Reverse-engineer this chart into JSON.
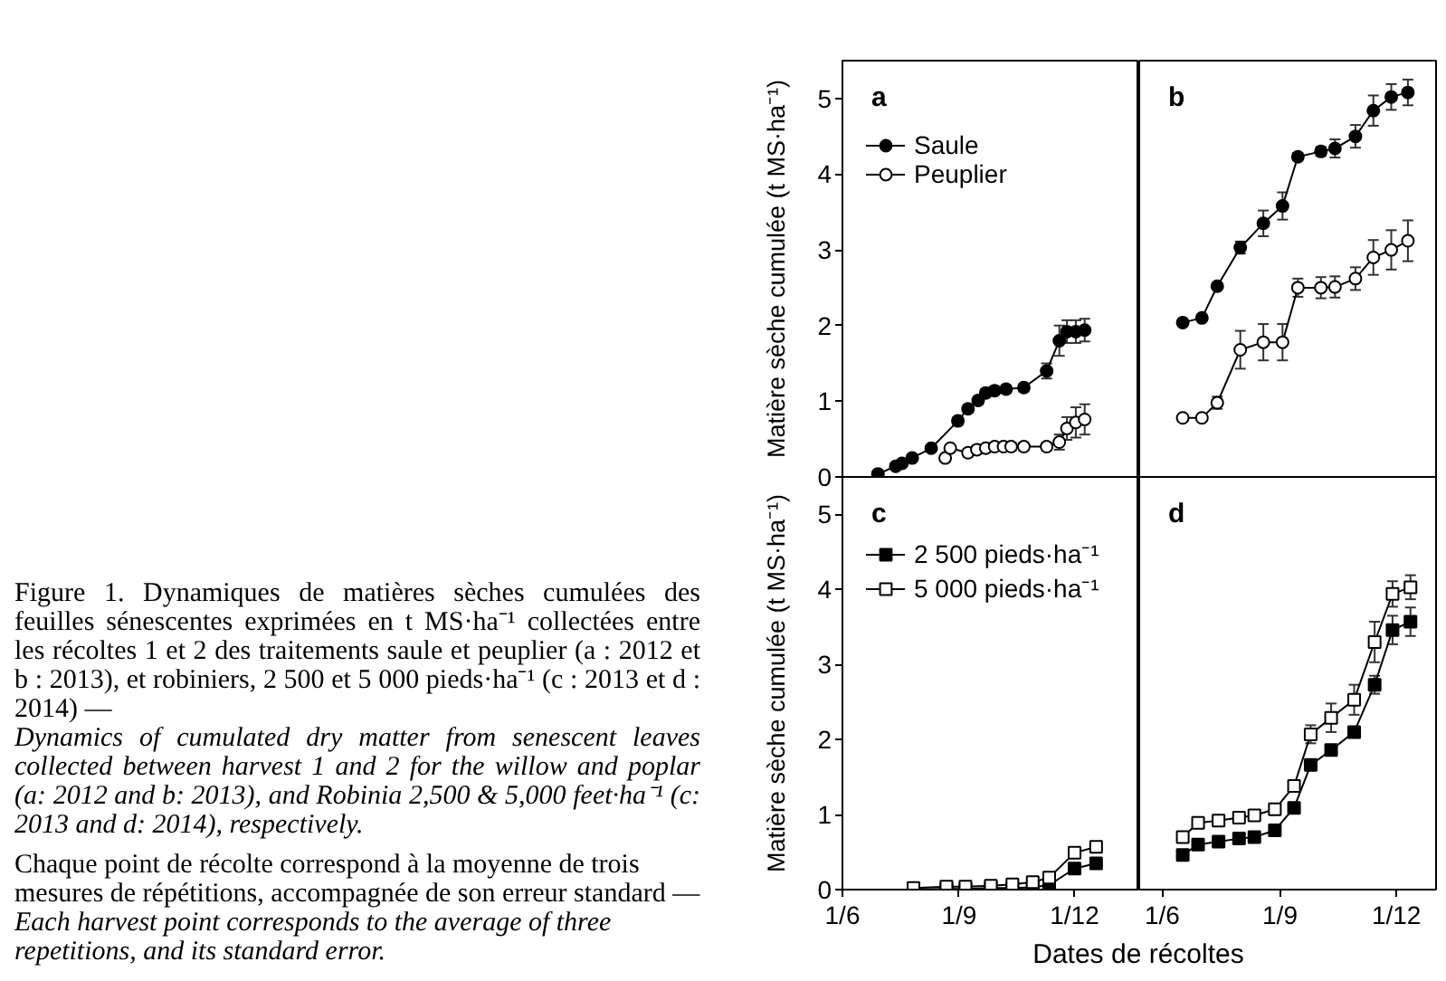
{
  "chart_data": [
    {
      "type": "line",
      "title": "a",
      "ylabel": "Matière sèche cumulée (t MS·ha⁻¹)",
      "marker": "circle",
      "legend": "top left",
      "tick_labels": "y",
      "annotations": [
        "Figure 1. Dynamiques de matières sèches cumulées des feuilles sénescentes exprimées en t MS·ha⁻¹ collectées entre les récoltes 1 et 2 des traitements saule et peuplier (a : 2012 et b : 2013), et robiniers, 2 500 et 5 000 pieds·ha⁻¹ (c : 2013 et d : 2014) —",
        "Dynamics of cumulated dry matter from senescent leaves collected between harvest 1 and 2 for the willow and poplar (a: 2012 and b: 2013), and Robinia 2,500 & 5,000 feet·ha⁻¹ (c: 2013 and d: 2014), respectively.",
        "Chaque point de récolte correspond à la moyenne de trois mesures de répétitions, accompagnée de son erreur standard —",
        "Each harvest point corresponds to the average of three repetitions, and its standard error."
      ],
      "xlim": [
        "2013-06-01",
        "2014-01-21"
      ],
      "ylim": [
        0,
        5.5
      ],
      "yticks": [
        0,
        1,
        2,
        3,
        4,
        5
      ],
      "series": [
        {
          "name": "Saule",
          "color": "#000000",
          "x": [
            "2013-06-29",
            "2013-07-13",
            "2013-07-18",
            "2013-07-26",
            "2013-08-10",
            "2013-08-31",
            "2013-09-08",
            "2013-09-16",
            "2013-09-22",
            "2013-09-29",
            "2013-10-08",
            "2013-10-22",
            "2013-11-09",
            "2013-11-19",
            "2013-11-25",
            "2013-12-02",
            "2013-12-09"
          ],
          "values": [
            0.04,
            0.14,
            0.18,
            0.25,
            0.38,
            0.74,
            0.9,
            1.01,
            1.11,
            1.14,
            1.16,
            1.18,
            1.4,
            1.8,
            1.92,
            1.92,
            1.94
          ],
          "errors": [
            null,
            null,
            null,
            null,
            null,
            0.05,
            0.05,
            0.05,
            0.05,
            0.05,
            0.05,
            0.05,
            0.1,
            0.2,
            0.15,
            0.15,
            0.15
          ]
        },
        {
          "name": "Peuplier",
          "color": "#ffffff",
          "x": [
            "2013-08-21",
            "2013-08-25",
            "2013-09-08",
            "2013-09-15",
            "2013-09-22",
            "2013-09-29",
            "2013-10-06",
            "2013-10-12",
            "2013-10-22",
            "2013-11-09",
            "2013-11-19",
            "2013-11-25",
            "2013-12-02",
            "2013-12-09"
          ],
          "values": [
            0.25,
            0.38,
            0.32,
            0.36,
            0.38,
            0.4,
            0.4,
            0.4,
            0.4,
            0.4,
            0.46,
            0.64,
            0.72,
            0.76
          ],
          "errors": [
            null,
            null,
            0.05,
            0.05,
            0.05,
            0.05,
            0.05,
            0.05,
            0.05,
            0.05,
            0.1,
            0.15,
            0.2,
            0.2
          ]
        }
      ]
    },
    {
      "type": "line",
      "title": "b",
      "marker": "circle",
      "tick_labels": false,
      "xlim": [
        "2014-05-14",
        "2015-01-01"
      ],
      "ylim": [
        0,
        5.5
      ],
      "x": [
        "2014-06-17",
        "2014-07-02",
        "2014-07-14",
        "2014-08-01",
        "2014-08-19",
        "2014-09-03",
        "2014-09-15",
        "2014-10-03",
        "2014-10-14",
        "2014-10-30",
        "2014-11-13",
        "2014-11-27",
        "2014-12-10"
      ],
      "series": [
        {
          "color": "#000000",
          "values": [
            2.04,
            2.1,
            2.52,
            3.03,
            3.35,
            3.58,
            4.23,
            4.3,
            4.34,
            4.5,
            4.84,
            5.02,
            5.08
          ],
          "errors": [
            null,
            null,
            null,
            0.08,
            0.17,
            0.18,
            0.05,
            0.06,
            0.12,
            0.15,
            0.2,
            0.17,
            0.17
          ]
        },
        {
          "color": "#ffffff",
          "values": [
            0.78,
            0.78,
            0.98,
            1.68,
            1.78,
            1.78,
            2.5,
            2.5,
            2.51,
            2.62,
            2.9,
            3.0,
            3.12
          ],
          "errors": [
            null,
            null,
            0.08,
            0.25,
            0.24,
            0.24,
            0.12,
            0.14,
            0.14,
            0.15,
            0.23,
            0.26,
            0.27
          ]
        }
      ]
    },
    {
      "type": "line",
      "title": "c",
      "xlabel": "Dates de récoltes",
      "ylabel": "Matière sèche cumulée (t MS·ha⁻¹)",
      "marker": "square",
      "legend": "top left",
      "xlim": [
        "2013-06-01",
        "2014-01-21"
      ],
      "ylim": [
        0,
        5.5
      ],
      "xticks": [
        {
          "value": "2013-06-01",
          "label": "1/6"
        },
        {
          "value": "2013-09-01",
          "label": "1/9"
        },
        {
          "value": "2013-12-01",
          "label": "1/12"
        }
      ],
      "yticks": [
        0,
        1,
        2,
        3,
        4,
        5
      ],
      "x": [
        "2013-07-27",
        "2013-08-22",
        "2013-09-06",
        "2013-09-26",
        "2013-10-13",
        "2013-10-29",
        "2013-11-11",
        "2013-12-01",
        "2013-12-18"
      ],
      "series": [
        {
          "name": "2 500 pieds·ha⁻¹",
          "color": "#000000",
          "values": [
            0.0,
            0.01,
            0.01,
            0.02,
            0.02,
            0.03,
            0.06,
            0.28,
            0.35
          ]
        },
        {
          "name": "5 000 pieds·ha⁻¹",
          "color": "#ffffff",
          "values": [
            0.02,
            0.04,
            0.04,
            0.05,
            0.07,
            0.1,
            0.16,
            0.49,
            0.57
          ]
        }
      ]
    },
    {
      "type": "line",
      "title": "d",
      "marker": "square",
      "tick_labels": "x",
      "xlim": [
        "2014-05-14",
        "2015-01-01"
      ],
      "ylim": [
        0,
        5.5
      ],
      "xticks": [
        {
          "value": "2014-06-01",
          "label": "1/6"
        },
        {
          "value": "2014-09-01",
          "label": "1/9"
        },
        {
          "value": "2014-12-01",
          "label": "1/12"
        }
      ],
      "x": [
        "2014-06-17",
        "2014-06-29",
        "2014-07-15",
        "2014-07-31",
        "2014-08-12",
        "2014-08-28",
        "2014-09-12",
        "2014-09-25",
        "2014-10-11",
        "2014-10-29",
        "2014-11-14",
        "2014-11-28",
        "2014-12-12"
      ],
      "series": [
        {
          "color": "#000000",
          "values": [
            0.46,
            0.6,
            0.64,
            0.68,
            0.7,
            0.79,
            1.09,
            1.66,
            1.86,
            2.1,
            2.73,
            3.46,
            3.57
          ],
          "errors": [
            null,
            null,
            null,
            null,
            null,
            null,
            null,
            null,
            null,
            null,
            0.12,
            0.19,
            0.19
          ]
        },
        {
          "color": "#ffffff",
          "values": [
            0.7,
            0.89,
            0.92,
            0.96,
            0.99,
            1.07,
            1.38,
            2.07,
            2.29,
            2.53,
            3.3,
            3.94,
            4.03
          ],
          "errors": [
            null,
            null,
            null,
            null,
            null,
            null,
            0.05,
            0.12,
            0.19,
            0.2,
            0.27,
            0.17,
            0.16
          ]
        }
      ]
    }
  ]
}
